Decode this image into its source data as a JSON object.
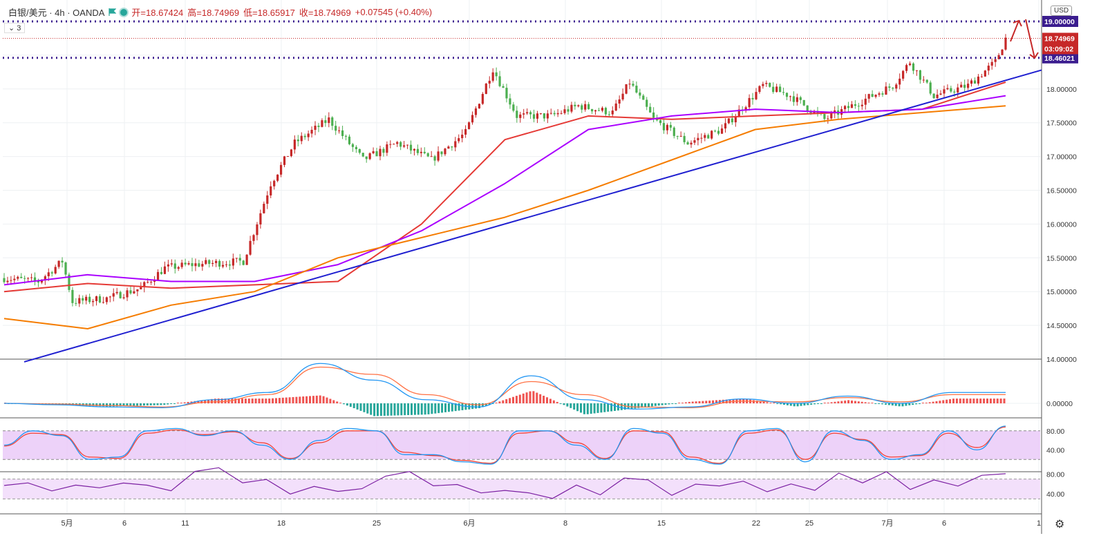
{
  "header": {
    "symbol": "白银/美元 · 4h · OANDA",
    "open_label": "开=18.67424",
    "high_label": "高=18.74969",
    "low_label": "低=18.65917",
    "close_label": "收=18.74969",
    "change_label": "+0.07545 (+0.40%)",
    "indicator_count": "3",
    "currency": "USD"
  },
  "colors": {
    "up": "#c62828",
    "down": "#4caf50",
    "ema_red": "#e53935",
    "ema_purple": "#aa00ff",
    "ema_orange": "#f57c00",
    "trendline": "#1f1fd0",
    "dotted_level": "#3b1d8f",
    "macd": "#2196f3",
    "signal": "#ff7043",
    "rsi_band": "#e8c7f7"
  },
  "chart_data": [
    {
      "type": "candlestick",
      "title": "",
      "ylabel": "USD",
      "x_tick_labels": [
        "5月",
        "6",
        "11",
        "18",
        "25",
        "6月",
        "8",
        "15",
        "22",
        "25",
        "7月",
        "6",
        "1"
      ],
      "y_tick_labels": [
        "14.00000",
        "14.50000",
        "15.00000",
        "15.50000",
        "16.00000",
        "16.50000",
        "17.00000",
        "17.50000",
        "18.00000",
        "18.50000",
        "19.00000"
      ],
      "ylim": [
        14.0,
        19.1
      ],
      "price_anchors": [
        [
          0,
          15.2
        ],
        [
          10,
          15.15
        ],
        [
          17,
          15.45
        ],
        [
          20,
          14.85
        ],
        [
          30,
          14.9
        ],
        [
          40,
          15.05
        ],
        [
          47,
          15.35
        ],
        [
          55,
          15.4
        ],
        [
          70,
          15.45
        ],
        [
          78,
          16.6
        ],
        [
          85,
          17.2
        ],
        [
          95,
          17.55
        ],
        [
          105,
          16.95
        ],
        [
          115,
          17.2
        ],
        [
          125,
          16.95
        ],
        [
          135,
          17.35
        ],
        [
          143,
          18.3
        ],
        [
          150,
          17.6
        ],
        [
          160,
          17.6
        ],
        [
          168,
          17.75
        ],
        [
          178,
          17.65
        ],
        [
          183,
          18.1
        ],
        [
          190,
          17.55
        ],
        [
          200,
          17.2
        ],
        [
          210,
          17.4
        ],
        [
          222,
          18.05
        ],
        [
          230,
          17.9
        ],
        [
          240,
          17.55
        ],
        [
          250,
          17.8
        ],
        [
          260,
          18.05
        ],
        [
          265,
          18.4
        ],
        [
          272,
          17.9
        ],
        [
          282,
          18.05
        ],
        [
          290,
          18.4
        ],
        [
          293,
          18.74969
        ]
      ],
      "series": [
        {
          "name": "",
          "kind": "ema",
          "values": [
            15.0,
            15.12,
            15.05,
            15.1,
            15.15,
            16.0,
            17.25,
            17.6,
            17.55,
            17.6,
            17.65,
            17.7,
            18.1
          ]
        },
        {
          "name": "",
          "kind": "ema",
          "values": [
            15.1,
            15.25,
            15.15,
            15.15,
            15.4,
            15.9,
            16.6,
            17.4,
            17.6,
            17.7,
            17.65,
            17.7,
            17.9
          ]
        },
        {
          "name": "",
          "kind": "ema",
          "values": [
            14.6,
            14.45,
            14.8,
            15.0,
            15.5,
            15.8,
            16.1,
            16.5,
            16.95,
            17.4,
            17.55,
            17.65,
            17.75
          ]
        }
      ],
      "trendline": {
        "from": [
          35,
          13.96
        ],
        "to": [
          1507,
          18.28
        ]
      },
      "levels": [
        {
          "price": 19.0,
          "label": "19.00000"
        },
        {
          "price": 18.46021,
          "label": "18.46021"
        }
      ],
      "last_price": {
        "price": 18.74969,
        "label": "18.74969",
        "countdown": "03:09:02"
      }
    },
    {
      "type": "macd",
      "y_tick_labels": [
        "0.00000"
      ],
      "macd": [
        0.0,
        -0.02,
        -0.05,
        -0.06,
        0.05,
        0.15,
        0.55,
        0.32,
        0.05,
        -0.05,
        0.38,
        0.05,
        -0.08,
        -0.05,
        0.06,
        0.0,
        0.1,
        0.0,
        0.15,
        0.15
      ],
      "signal": [
        0.0,
        -0.01,
        -0.03,
        -0.05,
        0.02,
        0.12,
        0.5,
        0.4,
        0.12,
        -0.02,
        0.3,
        0.12,
        -0.05,
        -0.06,
        0.03,
        0.02,
        0.08,
        0.02,
        0.12,
        0.12
      ]
    },
    {
      "type": "stochastic",
      "y_tick_labels": [
        "80.00",
        "40.00"
      ],
      "band": [
        20,
        80
      ],
      "k": [
        50,
        80,
        70,
        20,
        25,
        80,
        85,
        70,
        80,
        50,
        20,
        60,
        85,
        80,
        30,
        30,
        15,
        10,
        80,
        80,
        50,
        20,
        85,
        75,
        20,
        10,
        80,
        85,
        15,
        80,
        60,
        20,
        30,
        80,
        40,
        90
      ],
      "d": [
        48,
        75,
        72,
        25,
        22,
        75,
        82,
        72,
        78,
        55,
        22,
        55,
        80,
        80,
        35,
        28,
        18,
        12,
        75,
        80,
        55,
        22,
        80,
        78,
        25,
        12,
        75,
        82,
        20,
        75,
        62,
        25,
        28,
        75,
        45,
        88
      ]
    },
    {
      "type": "rsi",
      "y_tick_labels": [
        "80.00",
        "40.00"
      ],
      "band": [
        30,
        70
      ],
      "values": [
        60,
        65,
        45,
        55,
        50,
        60,
        55,
        45,
        85,
        92,
        65,
        70,
        40,
        55,
        45,
        50,
        75,
        85,
        55,
        60,
        40,
        50,
        45,
        30,
        55,
        40,
        75,
        70,
        40,
        60,
        55,
        65,
        45,
        58,
        50,
        80,
        60,
        85,
        50,
        70,
        55,
        80,
        82
      ]
    }
  ]
}
